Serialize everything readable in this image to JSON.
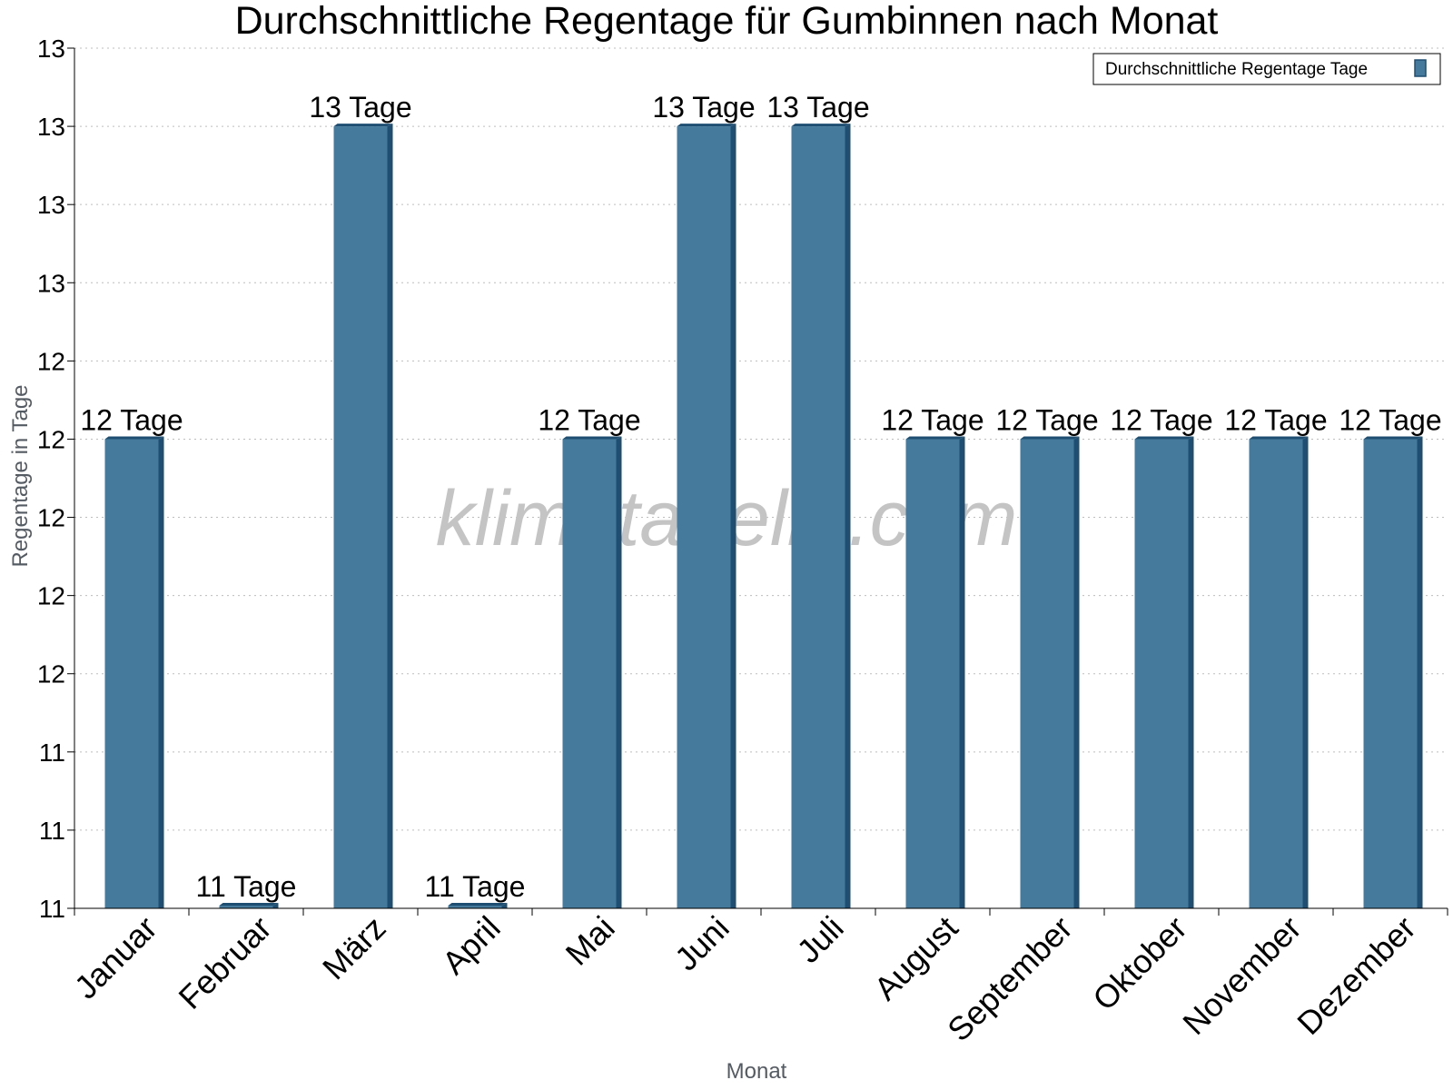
{
  "chart_data": {
    "type": "bar",
    "title": "Durchschnittliche Regentage für Gumbinnen nach Monat",
    "xlabel": "Monat",
    "ylabel": "Regentage in Tage",
    "categories": [
      "Januar",
      "Februar",
      "März",
      "April",
      "Mai",
      "Juni",
      "Juli",
      "August",
      "September",
      "Oktober",
      "November",
      "Dezember"
    ],
    "series": [
      {
        "name": "Durchschnittliche Regentage Tage",
        "values": [
          12.2,
          11.0,
          13.0,
          11.0,
          12.2,
          13.0,
          13.0,
          12.2,
          12.2,
          12.2,
          12.2,
          12.2
        ],
        "labels": [
          "12 Tage",
          "11 Tage",
          "13 Tage",
          "11 Tage",
          "12 Tage",
          "13 Tage",
          "13 Tage",
          "12 Tage",
          "12 Tage",
          "12 Tage",
          "12 Tage",
          "12 Tage"
        ]
      }
    ],
    "ylim": [
      11.0,
      13.2
    ],
    "yticks": [
      11.0,
      11.2,
      11.4,
      11.6,
      11.8,
      12.0,
      12.2,
      12.4,
      12.6,
      12.8,
      13.0,
      13.2
    ],
    "ytick_labels": [
      "11",
      "11",
      "11",
      "12",
      "12",
      "12",
      "12",
      "12",
      "13",
      "13",
      "13",
      "13"
    ],
    "grid": true,
    "legend_position": "top-right",
    "bar_color": "#467a9c",
    "bar_side_color": "#1e4e72",
    "watermark": "klimatabelle.com"
  }
}
